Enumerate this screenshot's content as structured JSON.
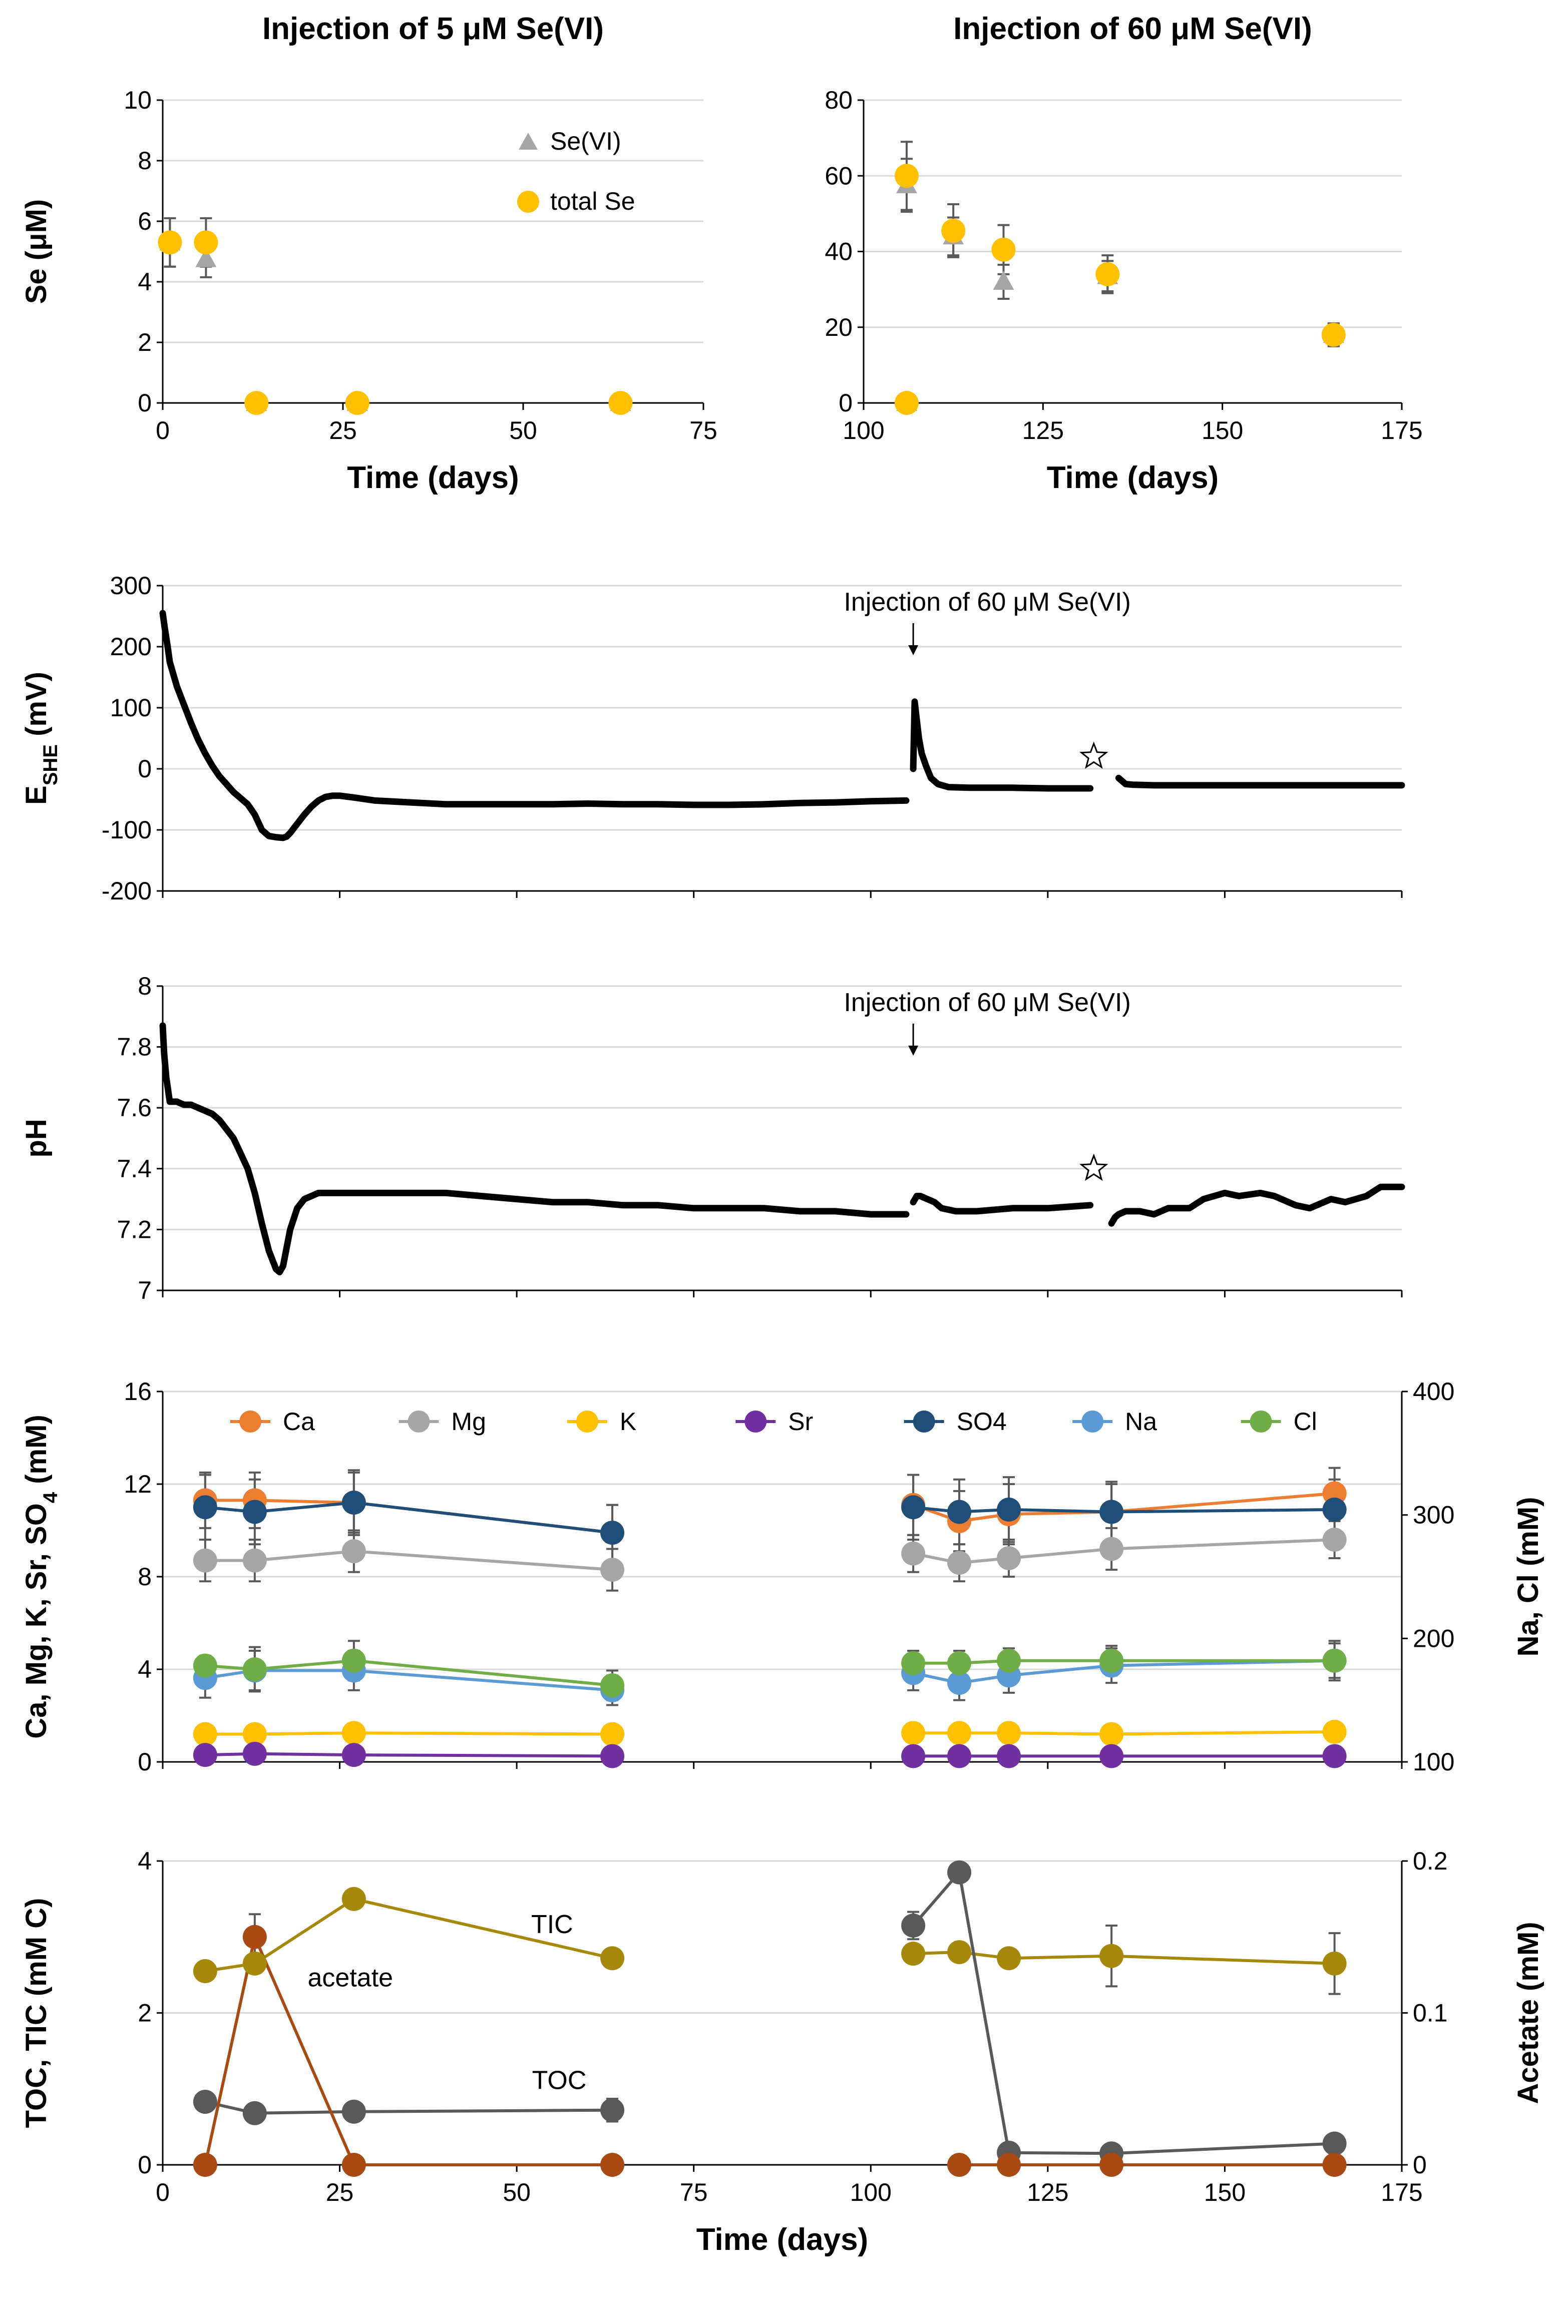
{
  "chart_data": [
    {
      "id": "se5",
      "type": "scatter",
      "title": "Injection of 5 μM Se(VI)",
      "xlabel": "Time (days)",
      "ylabel": "Se (μM)",
      "xlim": [
        0,
        75
      ],
      "ylim": [
        0,
        10
      ],
      "xticks": [
        0,
        25,
        50,
        75
      ],
      "yticks": [
        0,
        2,
        4,
        6,
        8,
        10
      ],
      "grid": true,
      "legend_position": "top-right",
      "series": [
        {
          "name": "Se(VI)",
          "marker": "triangle",
          "color": "#a6a6a6",
          "x": [
            1,
            6,
            13,
            27,
            63.5
          ],
          "y": [
            5.3,
            4.75,
            0,
            0,
            0
          ],
          "err": [
            0.8,
            0.6,
            0,
            0,
            0
          ]
        },
        {
          "name": "total Se",
          "marker": "circle",
          "color": "#ffc000",
          "x": [
            1,
            6,
            13,
            27,
            63.5
          ],
          "y": [
            5.3,
            5.3,
            0,
            0,
            0
          ],
          "err": [
            0.8,
            0.8,
            0,
            0,
            0
          ]
        }
      ]
    },
    {
      "id": "se60",
      "type": "scatter",
      "title": "Injection of 60 μM Se(VI)",
      "xlabel": "Time (days)",
      "ylabel": "",
      "xlim": [
        100,
        175
      ],
      "ylim": [
        0,
        80
      ],
      "xticks": [
        100,
        125,
        150,
        175
      ],
      "yticks": [
        0,
        20,
        40,
        60,
        80
      ],
      "grid": true,
      "series": [
        {
          "name": "Se(VI)",
          "marker": "triangle",
          "color": "#a6a6a6",
          "x": [
            106,
            106,
            112.5,
            119.5,
            134,
            165.5
          ],
          "y": [
            0,
            57.5,
            44,
            32,
            33.5,
            18
          ],
          "err": [
            0,
            7,
            5,
            4.5,
            4,
            3
          ]
        },
        {
          "name": "total Se",
          "marker": "circle",
          "color": "#ffc000",
          "x": [
            106,
            106,
            112.5,
            119.5,
            134,
            165.5
          ],
          "y": [
            0,
            60,
            45.5,
            40.5,
            34,
            18
          ],
          "err": [
            0,
            9,
            7,
            6.5,
            5,
            3
          ]
        }
      ]
    },
    {
      "id": "eh",
      "type": "line",
      "xlabel": "",
      "ylabel": "E",
      "ylabel_sub": "SHE",
      "ylabel_unit": " (mV)",
      "xlim": [
        0,
        175
      ],
      "ylim": [
        -200,
        300
      ],
      "xticks": [
        0,
        25,
        50,
        75,
        100,
        125,
        150,
        175
      ],
      "yticks": [
        -200,
        -100,
        0,
        100,
        200,
        300
      ],
      "grid": true,
      "annotation": "Injection of 60 μM Se(VI)",
      "annotation_x": 106,
      "star_x": 131.5,
      "star_y": 20,
      "series": [
        {
          "name": "E_SHE",
          "color": "#000000",
          "segments": [
            {
              "x": [
                0,
                0.3,
                0.7,
                1,
                1.5,
                2,
                3,
                4,
                5,
                6,
                7,
                8,
                9,
                10,
                11,
                12,
                13,
                14,
                15,
                16,
                17,
                17.5,
                18,
                19,
                20,
                21,
                22,
                23,
                24,
                25,
                27,
                30,
                35,
                40,
                45,
                50,
                55,
                60,
                65,
                70,
                75,
                80,
                85,
                90,
                95,
                100,
                105
              ],
              "y": [
                255,
                230,
                200,
                175,
                155,
                135,
                105,
                75,
                48,
                25,
                5,
                -12,
                -25,
                -38,
                -48,
                -58,
                -75,
                -100,
                -110,
                -112,
                -113,
                -111,
                -105,
                -90,
                -75,
                -62,
                -52,
                -46,
                -44,
                -44,
                -47,
                -52,
                -55,
                -58,
                -58,
                -58,
                -58,
                -57,
                -58,
                -58,
                -59,
                -59,
                -58,
                -56,
                -55,
                -53,
                -52
              ]
            },
            {
              "x": [
                106,
                106.2,
                106.5,
                106.8,
                107.2,
                107.8,
                108.5,
                109.5,
                111,
                114,
                120,
                125,
                131
              ],
              "y": [
                0,
                110,
                80,
                50,
                25,
                5,
                -15,
                -25,
                -30,
                -31,
                -31,
                -32,
                -32
              ]
            },
            {
              "x": [
                135,
                135.5,
                136,
                137,
                140,
                145,
                150,
                155,
                160,
                165,
                170,
                175
              ],
              "y": [
                -15,
                -20,
                -25,
                -26,
                -27,
                -27,
                -27,
                -27,
                -27,
                -27,
                -27,
                -27
              ]
            }
          ]
        }
      ]
    },
    {
      "id": "ph",
      "type": "line",
      "xlabel": "",
      "ylabel": "pH",
      "xlim": [
        0,
        175
      ],
      "ylim": [
        7,
        8
      ],
      "xticks": [
        0,
        25,
        50,
        75,
        100,
        125,
        150,
        175
      ],
      "yticks": [
        7,
        7.2,
        7.4,
        7.6,
        7.8,
        8
      ],
      "grid": true,
      "annotation": "Injection of 60 μM Se(VI)",
      "annotation_x": 106,
      "star_x": 131.5,
      "star_y": 7.4,
      "series": [
        {
          "name": "pH",
          "color": "#000000",
          "segments": [
            {
              "x": [
                0,
                0.2,
                0.5,
                1,
                2,
                3,
                4,
                5,
                6,
                7,
                8,
                9,
                10,
                11,
                12,
                13,
                14,
                15,
                16,
                16.5,
                17,
                17.5,
                18,
                19,
                20,
                21,
                22,
                24,
                27,
                30,
                35,
                40,
                45,
                50,
                55,
                60,
                65,
                70,
                75,
                80,
                85,
                90,
                95,
                100,
                105
              ],
              "y": [
                7.87,
                7.78,
                7.7,
                7.62,
                7.62,
                7.61,
                7.61,
                7.6,
                7.59,
                7.58,
                7.56,
                7.53,
                7.5,
                7.45,
                7.4,
                7.32,
                7.22,
                7.13,
                7.07,
                7.06,
                7.08,
                7.14,
                7.2,
                7.27,
                7.3,
                7.31,
                7.32,
                7.32,
                7.32,
                7.32,
                7.32,
                7.32,
                7.31,
                7.3,
                7.29,
                7.29,
                7.28,
                7.28,
                7.27,
                7.27,
                7.27,
                7.26,
                7.26,
                7.25,
                7.25
              ]
            },
            {
              "x": [
                106,
                106.5,
                107,
                108,
                109,
                110,
                112,
                115,
                120,
                125,
                131
              ],
              "y": [
                7.29,
                7.31,
                7.31,
                7.3,
                7.29,
                7.27,
                7.26,
                7.26,
                7.27,
                7.27,
                7.28
              ]
            },
            {
              "x": [
                134,
                134.5,
                135,
                136,
                138,
                140,
                142,
                145,
                147,
                150,
                152,
                155,
                157,
                160,
                162,
                165,
                167,
                170,
                172,
                175
              ],
              "y": [
                7.22,
                7.24,
                7.25,
                7.26,
                7.26,
                7.25,
                7.27,
                7.27,
                7.3,
                7.32,
                7.31,
                7.32,
                7.31,
                7.28,
                7.27,
                7.3,
                7.29,
                7.31,
                7.34,
                7.34
              ]
            }
          ]
        }
      ]
    },
    {
      "id": "ions",
      "type": "line",
      "xlabel": "",
      "ylabel": "Ca, Mg, K, Sr, SO",
      "ylabel_sub": "4",
      "ylabel_unit": " (mM)",
      "ylabel_right": "Na, Cl (mM)",
      "xlim": [
        0,
        175
      ],
      "ylim": [
        0,
        16
      ],
      "ylim_right": [
        100,
        400
      ],
      "xticks": [
        0,
        25,
        50,
        75,
        100,
        125,
        150,
        175
      ],
      "yticks": [
        0,
        4,
        8,
        12,
        16
      ],
      "yticks_right": [
        100,
        200,
        300,
        400
      ],
      "grid": true,
      "legend_position": "top",
      "series": [
        {
          "name": "Ca",
          "axis": "left",
          "color": "#ed7d31",
          "x": [
            6,
            13,
            27,
            63.5,
            106,
            112.5,
            119.5,
            134,
            165.5
          ],
          "y": [
            11.3,
            11.3,
            11.2,
            9.9,
            11.1,
            10.4,
            10.7,
            10.8,
            11.6
          ],
          "err": [
            1.2,
            1.2,
            1.3,
            1.2,
            1.3,
            1.3,
            1.3,
            1.2,
            1.1
          ]
        },
        {
          "name": "Mg",
          "axis": "left",
          "color": "#a6a6a6",
          "x": [
            6,
            13,
            27,
            63.5,
            106,
            112.5,
            119.5,
            134,
            165.5
          ],
          "y": [
            8.7,
            8.7,
            9.1,
            8.3,
            9.0,
            8.6,
            8.8,
            9.2,
            9.6
          ],
          "err": [
            0.9,
            0.9,
            0.9,
            0.9,
            0.8,
            0.8,
            0.8,
            0.9,
            0.8
          ]
        },
        {
          "name": "K",
          "axis": "left",
          "color": "#ffc000",
          "x": [
            6,
            13,
            27,
            63.5,
            106,
            112.5,
            119.5,
            134,
            165.5
          ],
          "y": [
            1.2,
            1.2,
            1.25,
            1.2,
            1.25,
            1.25,
            1.25,
            1.2,
            1.3
          ],
          "err": [
            0,
            0,
            0,
            0,
            0,
            0,
            0,
            0,
            0
          ]
        },
        {
          "name": "Sr",
          "axis": "left",
          "color": "#7030a0",
          "x": [
            6,
            13,
            27,
            63.5,
            106,
            112.5,
            119.5,
            134,
            165.5
          ],
          "y": [
            0.3,
            0.35,
            0.3,
            0.25,
            0.25,
            0.25,
            0.25,
            0.25,
            0.25
          ],
          "err": [
            0,
            0,
            0,
            0,
            0,
            0,
            0,
            0,
            0
          ]
        },
        {
          "name": "SO4",
          "axis": "left",
          "color": "#1f4e79",
          "x": [
            6,
            13,
            27,
            63.5,
            106,
            112.5,
            119.5,
            134,
            165.5
          ],
          "y": [
            11.0,
            10.8,
            11.2,
            9.9,
            11.0,
            10.8,
            10.9,
            10.8,
            10.9
          ],
          "err": [
            1.4,
            1.4,
            1.4,
            1.2,
            1.4,
            1.4,
            1.4,
            1.3,
            1.3
          ]
        },
        {
          "name": "Na",
          "axis": "right",
          "color": "#5b9bd5",
          "x": [
            6,
            13,
            27,
            63.5,
            106,
            112.5,
            119.5,
            134,
            165.5
          ],
          "y": [
            168,
            174,
            174,
            158,
            172,
            164,
            170,
            178,
            182
          ],
          "err": [
            16,
            16,
            16,
            12,
            14,
            14,
            14,
            14,
            14
          ]
        },
        {
          "name": "Cl",
          "axis": "right",
          "color": "#70ad47",
          "x": [
            6,
            13,
            27,
            63.5,
            106,
            112.5,
            119.5,
            134,
            165.5
          ],
          "y": [
            178,
            175,
            182,
            162,
            180,
            180,
            182,
            182,
            182
          ],
          "err": [
            8,
            18,
            16,
            12,
            10,
            10,
            10,
            12,
            16
          ]
        }
      ]
    },
    {
      "id": "carbon",
      "type": "line",
      "xlabel": "Time (days)",
      "ylabel": "TOC, TIC (mM C)",
      "ylabel_right": "Acetate (mM)",
      "xlim": [
        0,
        175
      ],
      "ylim": [
        0,
        4
      ],
      "ylim_right": [
        0,
        0.2
      ],
      "xticks": [
        0,
        25,
        50,
        75,
        100,
        125,
        150,
        175
      ],
      "yticks": [
        0,
        2,
        4
      ],
      "yticks_right": [
        0,
        0.1,
        0.2
      ],
      "grid": true,
      "labels": {
        "tic": "TIC",
        "acetate": "acetate",
        "toc": "TOC"
      },
      "series": [
        {
          "name": "TIC",
          "axis": "left",
          "color": "#a6880a",
          "x": [
            6,
            13,
            27,
            63.5,
            106,
            112.5,
            119.5,
            134,
            165.5
          ],
          "y": [
            2.55,
            2.65,
            3.5,
            2.72,
            2.78,
            2.8,
            2.72,
            2.75,
            2.65
          ],
          "err": [
            0,
            0,
            0,
            0,
            0,
            0,
            0,
            0.4,
            0.4
          ]
        },
        {
          "name": "TOC",
          "axis": "left",
          "color": "#595959",
          "x": [
            6,
            13,
            27,
            63.5,
            106,
            112.5,
            119.5,
            134,
            165.5
          ],
          "y": [
            0.83,
            0.68,
            0.7,
            0.72,
            3.15,
            3.85,
            0.16,
            0.15,
            0.28
          ],
          "err": [
            0,
            0,
            0,
            0.15,
            0.18,
            0,
            0,
            0,
            0
          ]
        },
        {
          "name": "acetate",
          "axis": "right",
          "color": "#a84a12",
          "x": [
            6,
            13,
            27,
            63.5,
            112.5,
            119.5,
            134,
            165.5
          ],
          "y": [
            0,
            0.15,
            0,
            0,
            0,
            0,
            0,
            0
          ],
          "err": [
            0,
            0.015,
            0,
            0,
            0,
            0,
            0,
            0
          ]
        }
      ]
    }
  ]
}
